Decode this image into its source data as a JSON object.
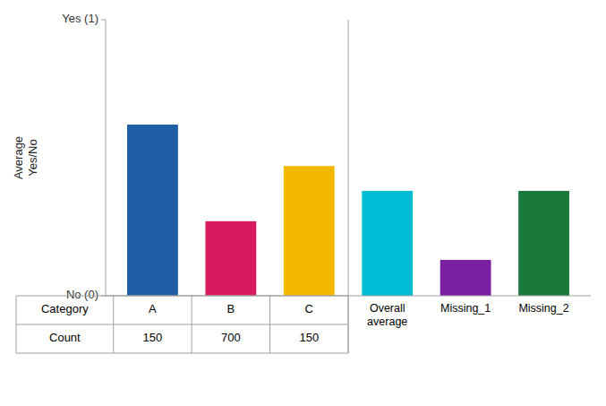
{
  "chart_data": {
    "type": "bar",
    "categories": [
      "A",
      "B",
      "C",
      "Overall\naverage",
      "Missing_1",
      "Missing_2"
    ],
    "values": [
      0.62,
      0.27,
      0.47,
      0.38,
      0.13,
      0.38
    ],
    "colors": [
      "#1f5fa6",
      "#d81b60",
      "#f5b800",
      "#00bcd4",
      "#7b1fa2",
      "#1a7a3c"
    ],
    "ylabel": "Average\nYes/No",
    "ylim": [
      0,
      1.0
    ],
    "yticks": [
      {
        "value": 0,
        "label": "No (0)"
      },
      {
        "value": 1,
        "label": "Yes (1)"
      }
    ],
    "grid": false,
    "table": {
      "header": "Category",
      "count_label": "Count",
      "counts": [
        150,
        700,
        150
      ]
    }
  }
}
